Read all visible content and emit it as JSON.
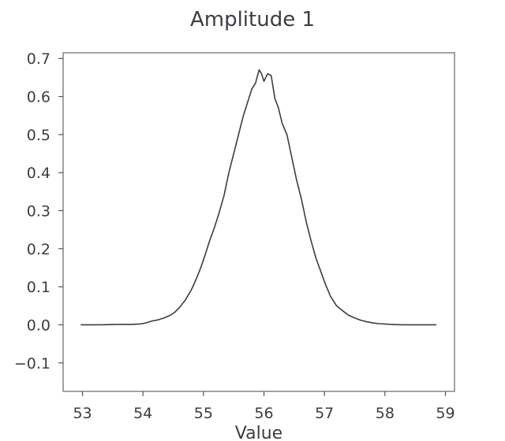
{
  "chart_data": {
    "type": "line",
    "title": "Amplitude 1",
    "xlabel": "Value",
    "ylabel": "",
    "xlim": [
      52.68,
      59.15
    ],
    "ylim": [
      -0.175,
      0.715
    ],
    "grid": false,
    "x_ticks": [
      {
        "value": 53,
        "label": "53"
      },
      {
        "value": 54,
        "label": "54"
      },
      {
        "value": 55,
        "label": "55"
      },
      {
        "value": 56,
        "label": "56"
      },
      {
        "value": 57,
        "label": "57"
      },
      {
        "value": 58,
        "label": "58"
      },
      {
        "value": 59,
        "label": "59"
      }
    ],
    "y_ticks": [
      {
        "value": -0.1,
        "label": "−0.1"
      },
      {
        "value": 0.0,
        "label": "0.0"
      },
      {
        "value": 0.1,
        "label": "0.1"
      },
      {
        "value": 0.2,
        "label": "0.2"
      },
      {
        "value": 0.3,
        "label": "0.3"
      },
      {
        "value": 0.4,
        "label": "0.4"
      },
      {
        "value": 0.5,
        "label": "0.5"
      },
      {
        "value": 0.6,
        "label": "0.6"
      },
      {
        "value": 0.7,
        "label": "0.7"
      }
    ],
    "series": [
      {
        "color": "#3c3c44",
        "x": [
          52.97,
          53.3,
          53.6,
          53.8,
          53.95,
          54.05,
          54.15,
          54.25,
          54.35,
          54.45,
          54.52,
          54.6,
          54.7,
          54.8,
          54.88,
          54.95,
          55.02,
          55.1,
          55.18,
          55.26,
          55.34,
          55.42,
          55.5,
          55.58,
          55.66,
          55.74,
          55.8,
          55.86,
          55.92,
          55.96,
          56.0,
          56.06,
          56.12,
          56.18,
          56.24,
          56.3,
          56.38,
          56.46,
          56.54,
          56.62,
          56.7,
          56.78,
          56.86,
          56.94,
          57.02,
          57.1,
          57.2,
          57.3,
          57.4,
          57.5,
          57.6,
          57.7,
          57.8,
          57.9,
          58.0,
          58.1,
          58.3,
          58.5,
          58.7,
          58.85
        ],
        "y": [
          0.0,
          0.0,
          0.001,
          0.001,
          0.002,
          0.005,
          0.01,
          0.013,
          0.018,
          0.025,
          0.032,
          0.045,
          0.065,
          0.092,
          0.12,
          0.148,
          0.18,
          0.22,
          0.255,
          0.295,
          0.34,
          0.4,
          0.45,
          0.5,
          0.55,
          0.59,
          0.62,
          0.635,
          0.67,
          0.66,
          0.64,
          0.66,
          0.655,
          0.595,
          0.57,
          0.53,
          0.5,
          0.44,
          0.38,
          0.33,
          0.27,
          0.22,
          0.175,
          0.14,
          0.105,
          0.075,
          0.05,
          0.037,
          0.025,
          0.018,
          0.012,
          0.008,
          0.005,
          0.003,
          0.002,
          0.001,
          0.0,
          0.0,
          0.0,
          0.0
        ]
      }
    ]
  }
}
